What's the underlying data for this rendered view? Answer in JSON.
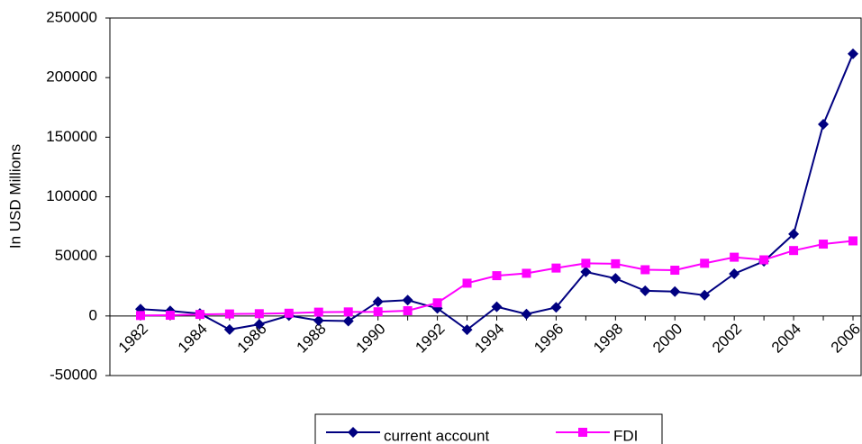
{
  "chart_data": {
    "type": "line",
    "y_label": "In USD Millions",
    "categories": [
      "1982",
      null,
      "1984",
      null,
      "1986",
      null,
      "1988",
      null,
      "1990",
      null,
      "1992",
      null,
      "1994",
      null,
      "1996",
      null,
      "1998",
      null,
      "2000",
      null,
      "2002",
      null,
      "2004",
      null,
      "2006"
    ],
    "series": [
      {
        "name": "current account",
        "color": "#000080",
        "marker": "diamond",
        "values": [
          5700,
          4200,
          2000,
          -11400,
          -7000,
          300,
          -3800,
          -4300,
          12000,
          13300,
          6400,
          -11600,
          7700,
          1600,
          7200,
          37000,
          31500,
          21100,
          20500,
          17400,
          35400,
          45900,
          68700,
          160800,
          220000
        ]
      },
      {
        "name": "FDI",
        "color": "#ff00ff",
        "marker": "square",
        "values": [
          400,
          600,
          1300,
          1700,
          1900,
          2300,
          3200,
          3400,
          3500,
          4400,
          11000,
          27500,
          33800,
          35800,
          40200,
          44200,
          43800,
          38800,
          38400,
          44200,
          49300,
          47100,
          54900,
          60300,
          63000
        ]
      }
    ],
    "ylim": [
      -50000,
      250000
    ],
    "yticks": [
      -50000,
      0,
      50000,
      100000,
      150000,
      200000,
      250000
    ],
    "grid": false
  }
}
